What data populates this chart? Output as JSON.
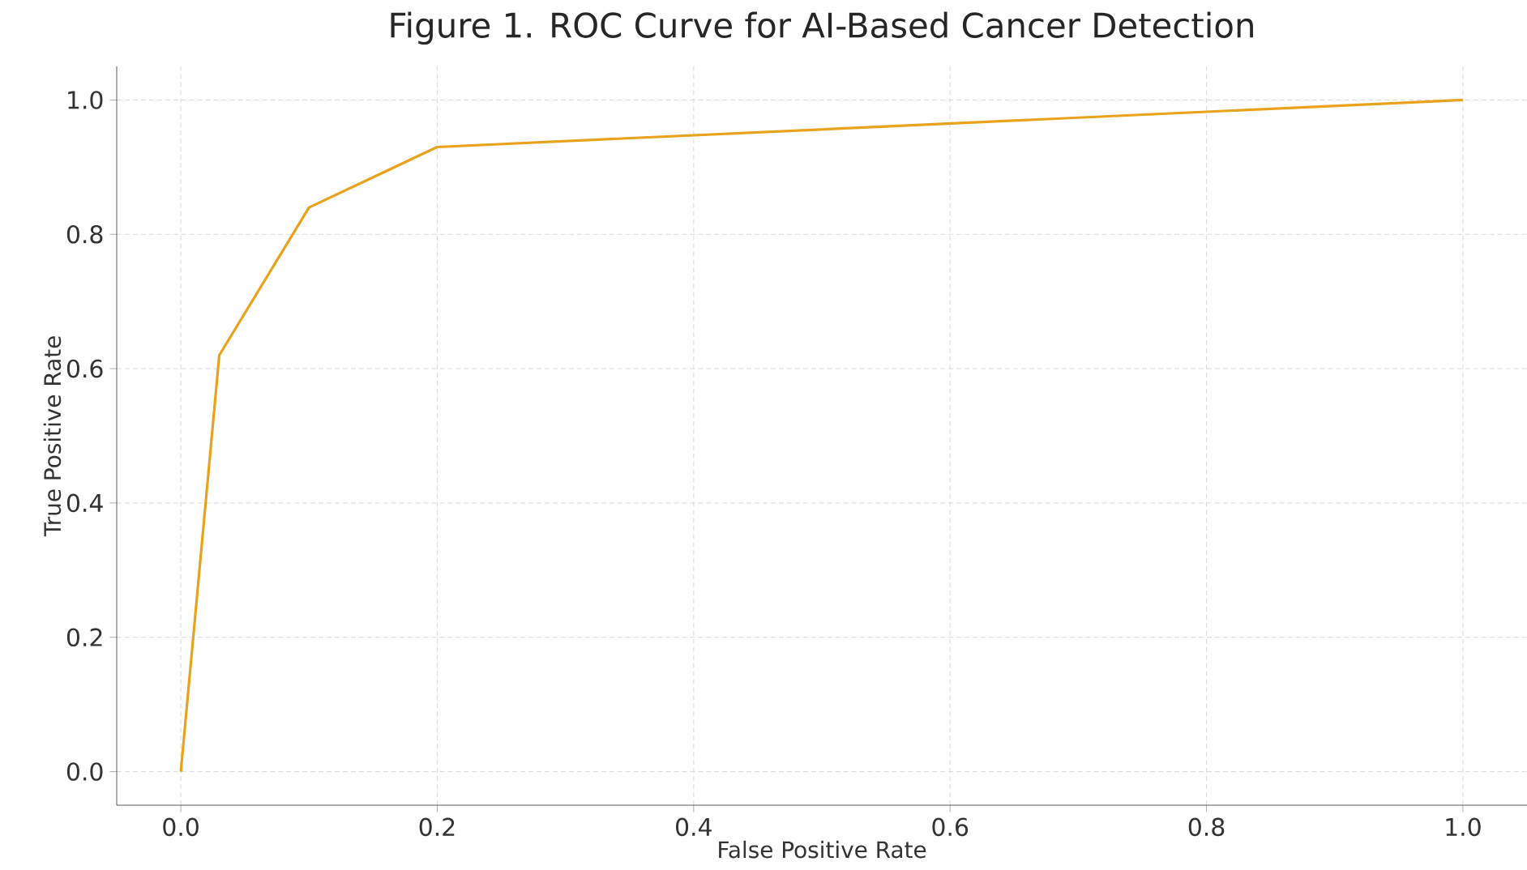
{
  "chart_data": {
    "type": "line",
    "title": "Figure 1. ROC Curve for AI-Based Cancer Detection",
    "xlabel": "False Positive Rate",
    "ylabel": "True Positive Rate",
    "x": [
      0,
      0.03,
      0.1,
      0.2,
      1.0
    ],
    "series": [
      {
        "color": "#e8a21c",
        "values": [
          0,
          0.62,
          0.84,
          0.93,
          1.0
        ]
      }
    ],
    "xlim": [
      -0.05,
      1.05
    ],
    "ylim": [
      -0.05,
      1.05
    ],
    "xticks": [
      {
        "value": 0,
        "label": "0.0"
      },
      {
        "value": 0.2,
        "label": "0.2"
      },
      {
        "value": 0.4,
        "label": "0.4"
      },
      {
        "value": 0.6,
        "label": "0.6"
      },
      {
        "value": 0.8,
        "label": "0.8"
      },
      {
        "value": 1.0,
        "label": "1.0"
      }
    ],
    "yticks": [
      {
        "value": 0,
        "label": "0.0"
      },
      {
        "value": 0.2,
        "label": "0.2"
      },
      {
        "value": 0.4,
        "label": "0.4"
      },
      {
        "value": 0.6,
        "label": "0.6"
      },
      {
        "value": 0.8,
        "label": "0.8"
      },
      {
        "value": 1.0,
        "label": "1.0"
      }
    ],
    "grid": true,
    "marker": "none",
    "line_style": "solid"
  }
}
